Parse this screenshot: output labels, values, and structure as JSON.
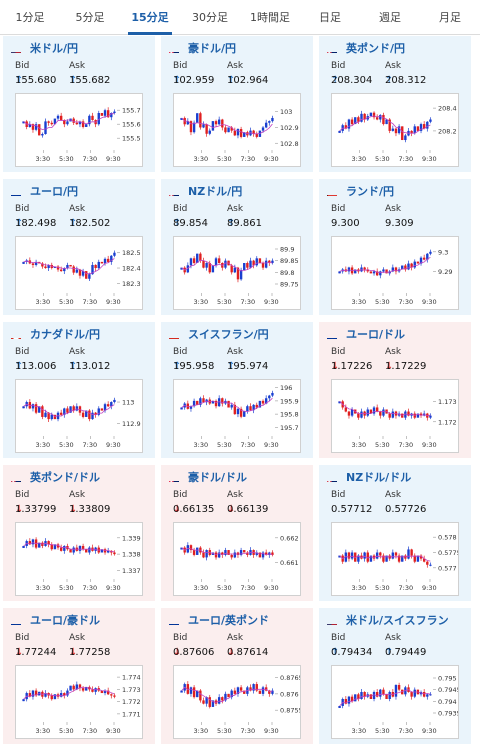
{
  "tabs": [
    "1分足",
    "5分足",
    "15分足",
    "30分足",
    "1時間足",
    "日足",
    "週足",
    "月足"
  ],
  "active_tab": 2,
  "x_ticks": [
    "3:30",
    "5:30",
    "7:30",
    "9:30"
  ],
  "colors": {
    "bull": "#1a3fd0",
    "bear": "#e02020",
    "ma": "#c040c0",
    "up_bg": "#eaf4fb",
    "down_bg": "#fbeeee"
  },
  "cards": [
    {
      "name": "米ドル/円",
      "dir": "up",
      "bid_label": "Bid",
      "ask_label": "Ask",
      "bid": "155.680",
      "ask": "155.682",
      "bid_arrow": "↑",
      "ask_arrow": "↑",
      "flags": "US-JP",
      "y_ticks": [
        "155.7",
        "155.6",
        "155.5"
      ],
      "chart_data": {
        "type": "candlestick",
        "ylim": [
          155.43,
          155.78
        ],
        "close": [
          155.62,
          155.58,
          155.6,
          155.56,
          155.6,
          155.52,
          155.53,
          155.62,
          155.61,
          155.6,
          155.64,
          155.66,
          155.63,
          155.6,
          155.62,
          155.64,
          155.61,
          155.6,
          155.62,
          155.58,
          155.6,
          155.66,
          155.63,
          155.6,
          155.68,
          155.66,
          155.7,
          155.65,
          155.68,
          155.69
        ]
      }
    },
    {
      "name": "豪ドル/円",
      "dir": "up",
      "bid_label": "Bid",
      "ask_label": "Ask",
      "bid": "102.959",
      "ask": "102.964",
      "bid_arrow": "↑",
      "ask_arrow": "↑",
      "flags": "AU-JP",
      "y_ticks": [
        "103",
        "102.9",
        "102.8"
      ],
      "chart_data": {
        "type": "candlestick",
        "ylim": [
          102.77,
          103.08
        ],
        "close": [
          102.96,
          102.92,
          102.94,
          102.87,
          102.93,
          102.99,
          102.9,
          102.92,
          102.86,
          102.88,
          102.94,
          102.92,
          102.95,
          102.9,
          102.87,
          102.9,
          102.88,
          102.85,
          102.89,
          102.84,
          102.87,
          102.85,
          102.88,
          102.86,
          102.84,
          102.88,
          102.9,
          102.93,
          102.94,
          102.96
        ]
      }
    },
    {
      "name": "英ポンド/円",
      "dir": "up",
      "bid_label": "Bid",
      "ask_label": "Ask",
      "bid": "208.304",
      "ask": "208.312",
      "bid_arrow": "↑",
      "ask_arrow": "↑",
      "flags": "GB-JP",
      "y_ticks": [
        "208.4",
        "208.2"
      ],
      "chart_data": {
        "type": "candlestick",
        "ylim": [
          208.05,
          208.48
        ],
        "close": [
          208.2,
          208.25,
          208.22,
          208.3,
          208.26,
          208.32,
          208.28,
          208.35,
          208.3,
          208.33,
          208.36,
          208.32,
          208.3,
          208.34,
          208.26,
          208.3,
          208.2,
          208.22,
          208.18,
          208.24,
          208.12,
          208.16,
          208.2,
          208.18,
          208.24,
          208.2,
          208.26,
          208.22,
          208.28,
          208.3
        ]
      }
    },
    {
      "name": "ユーロ/円",
      "dir": "up",
      "bid_label": "Bid",
      "ask_label": "Ask",
      "bid": "182.498",
      "ask": "182.502",
      "bid_arrow": "↑",
      "ask_arrow": "↑",
      "flags": "EU-JP",
      "y_ticks": [
        "182.5",
        "182.4",
        "182.3"
      ],
      "chart_data": {
        "type": "candlestick",
        "ylim": [
          182.25,
          182.57
        ],
        "close": [
          182.44,
          182.45,
          182.43,
          182.42,
          182.44,
          182.43,
          182.41,
          182.4,
          182.42,
          182.4,
          182.41,
          182.39,
          182.38,
          182.4,
          182.42,
          182.41,
          182.37,
          182.39,
          182.35,
          182.38,
          182.33,
          182.36,
          182.42,
          182.4,
          182.44,
          182.43,
          182.46,
          182.44,
          182.48,
          182.5
        ]
      }
    },
    {
      "name": "NZドル/円",
      "dir": "up",
      "bid_label": "Bid",
      "ask_label": "Ask",
      "bid": "89.854",
      "ask": "89.861",
      "bid_arrow": "↑",
      "ask_arrow": "↑",
      "flags": "NZ-JP",
      "y_ticks": [
        "89.9",
        "89.85",
        "89.8",
        "89.75"
      ],
      "chart_data": {
        "type": "candlestick",
        "ylim": [
          89.72,
          89.93
        ],
        "close": [
          89.82,
          89.8,
          89.83,
          89.86,
          89.84,
          89.88,
          89.85,
          89.82,
          89.84,
          89.8,
          89.83,
          89.86,
          89.84,
          89.82,
          89.85,
          89.83,
          89.8,
          89.82,
          89.77,
          89.81,
          89.84,
          89.82,
          89.85,
          89.83,
          89.86,
          89.84,
          89.82,
          89.85,
          89.84,
          89.85
        ]
      }
    },
    {
      "name": "ランド/円",
      "dir": "flat",
      "bid_label": "Bid",
      "ask_label": "Ask",
      "bid": "9.300",
      "ask": "9.309",
      "bid_arrow": "",
      "ask_arrow": "",
      "flags": "ZA-JP",
      "y_ticks": [
        "9.3",
        "9.29"
      ],
      "chart_data": {
        "type": "candlestick",
        "ylim": [
          9.28,
          9.305
        ],
        "close": [
          9.29,
          9.291,
          9.29,
          9.292,
          9.289,
          9.291,
          9.29,
          9.292,
          9.291,
          9.29,
          9.289,
          9.29,
          9.288,
          9.29,
          9.291,
          9.289,
          9.29,
          9.292,
          9.29,
          9.291,
          9.293,
          9.291,
          9.294,
          9.292,
          9.295,
          9.294,
          9.297,
          9.296,
          9.299,
          9.3
        ]
      }
    },
    {
      "name": "カナダドル/円",
      "dir": "up",
      "bid_label": "Bid",
      "ask_label": "Ask",
      "bid": "113.006",
      "ask": "113.012",
      "bid_arrow": "↑",
      "ask_arrow": "↑",
      "flags": "CA-JP",
      "y_ticks": [
        "113",
        "112.9"
      ],
      "chart_data": {
        "type": "candlestick",
        "ylim": [
          112.85,
          113.08
        ],
        "close": [
          112.98,
          113.0,
          112.97,
          112.99,
          112.95,
          112.98,
          112.93,
          112.95,
          112.92,
          112.94,
          112.92,
          112.95,
          112.94,
          112.97,
          112.95,
          112.98,
          112.96,
          112.98,
          112.95,
          112.93,
          112.96,
          112.92,
          112.95,
          112.94,
          112.97,
          112.96,
          112.99,
          112.98,
          113.0,
          113.01
        ]
      }
    },
    {
      "name": "スイスフラン/円",
      "dir": "up",
      "bid_label": "Bid",
      "ask_label": "Ask",
      "bid": "195.958",
      "ask": "195.974",
      "bid_arrow": "↑",
      "ask_arrow": "↑",
      "flags": "CH-JP",
      "y_ticks": [
        "196",
        "195.9",
        "195.8",
        "195.7"
      ],
      "chart_data": {
        "type": "candlestick",
        "ylim": [
          195.65,
          196.02
        ],
        "close": [
          195.85,
          195.88,
          195.84,
          195.86,
          195.9,
          195.87,
          195.92,
          195.89,
          195.91,
          195.88,
          195.9,
          195.86,
          195.92,
          195.88,
          195.9,
          195.85,
          195.87,
          195.8,
          195.84,
          195.78,
          195.82,
          195.86,
          195.83,
          195.87,
          195.85,
          195.9,
          195.88,
          195.92,
          195.94,
          195.96
        ]
      }
    },
    {
      "name": "ユーロ/ドル",
      "dir": "down",
      "bid_label": "Bid",
      "ask_label": "Ask",
      "bid": "1.17226",
      "ask": "1.17229",
      "bid_arrow": "↓",
      "ask_arrow": "↓",
      "flags": "EU-US",
      "y_ticks": [
        "1.173",
        "1.172"
      ],
      "chart_data": {
        "type": "candlestick",
        "ylim": [
          1.1714,
          1.1738
        ],
        "close": [
          1.173,
          1.1727,
          1.1725,
          1.1723,
          1.1726,
          1.1724,
          1.1722,
          1.1725,
          1.1723,
          1.1726,
          1.1724,
          1.1727,
          1.1725,
          1.1723,
          1.1726,
          1.1724,
          1.1722,
          1.1725,
          1.1723,
          1.1724,
          1.1722,
          1.1725,
          1.1723,
          1.1724,
          1.1722,
          1.1724,
          1.1723,
          1.1724,
          1.1722,
          1.1723
        ]
      }
    },
    {
      "name": "英ポンド/ドル",
      "dir": "down",
      "bid_label": "Bid",
      "ask_label": "Ask",
      "bid": "1.33799",
      "ask": "1.33809",
      "bid_arrow": "↓",
      "ask_arrow": "↓",
      "flags": "GB-US",
      "y_ticks": [
        "1.339",
        "1.338",
        "1.337"
      ],
      "chart_data": {
        "type": "candlestick",
        "ylim": [
          1.3366,
          1.3396
        ],
        "close": [
          1.3385,
          1.3388,
          1.3386,
          1.3389,
          1.3384,
          1.3387,
          1.3385,
          1.3388,
          1.3386,
          1.3383,
          1.3386,
          1.3384,
          1.3382,
          1.3385,
          1.3383,
          1.3381,
          1.3384,
          1.3382,
          1.3385,
          1.3383,
          1.3381,
          1.3384,
          1.3382,
          1.3384,
          1.3381,
          1.3383,
          1.3381,
          1.3382,
          1.3381,
          1.338
        ]
      }
    },
    {
      "name": "豪ドル/ドル",
      "dir": "down",
      "bid_label": "Bid",
      "ask_label": "Ask",
      "bid": "0.66135",
      "ask": "0.66139",
      "bid_arrow": "↓",
      "ask_arrow": "↓",
      "flags": "AU-US",
      "y_ticks": [
        "0.662",
        "0.661"
      ],
      "chart_data": {
        "type": "candlestick",
        "ylim": [
          0.6604,
          0.6624
        ],
        "close": [
          0.6616,
          0.6614,
          0.6617,
          0.6615,
          0.6613,
          0.6616,
          0.6614,
          0.6612,
          0.6615,
          0.6613,
          0.6614,
          0.6612,
          0.6614,
          0.6613,
          0.6615,
          0.6613,
          0.6612,
          0.6614,
          0.6613,
          0.6615,
          0.6614,
          0.6613,
          0.6615,
          0.6613,
          0.6614,
          0.6612,
          0.6614,
          0.6613,
          0.6614,
          0.6613
        ]
      }
    },
    {
      "name": "NZドル/ドル",
      "dir": "flat",
      "bid_label": "Bid",
      "ask_label": "Ask",
      "bid": "0.57712",
      "ask": "0.57726",
      "bid_arrow": "",
      "ask_arrow": "",
      "flags": "NZ-US",
      "y_ticks": [
        "0.578",
        "0.5775",
        "0.577"
      ],
      "chart_data": {
        "type": "candlestick",
        "ylim": [
          0.5767,
          0.5783
        ],
        "close": [
          0.5774,
          0.5772,
          0.5775,
          0.5773,
          0.5775,
          0.5772,
          0.5774,
          0.5773,
          0.5775,
          0.5772,
          0.5774,
          0.5773,
          0.5775,
          0.5774,
          0.5772,
          0.5774,
          0.5773,
          0.5775,
          0.5774,
          0.5772,
          0.5774,
          0.5773,
          0.5776,
          0.5774,
          0.5772,
          0.5774,
          0.5773,
          0.5772,
          0.5771,
          0.5771
        ]
      }
    },
    {
      "name": "ユーロ/豪ドル",
      "dir": "down",
      "bid_label": "Bid",
      "ask_label": "Ask",
      "bid": "1.77244",
      "ask": "1.77258",
      "bid_arrow": "↓",
      "ask_arrow": "↓",
      "flags": "EU-AU",
      "y_ticks": [
        "1.774",
        "1.773",
        "1.772",
        "1.771"
      ],
      "chart_data": {
        "type": "candlestick",
        "ylim": [
          1.7705,
          1.7745
        ],
        "close": [
          1.7722,
          1.7727,
          1.7724,
          1.7729,
          1.7725,
          1.7728,
          1.7724,
          1.7727,
          1.7725,
          1.7722,
          1.7726,
          1.7724,
          1.7727,
          1.7725,
          1.7729,
          1.7733,
          1.773,
          1.7734,
          1.7731,
          1.7729,
          1.7732,
          1.773,
          1.7728,
          1.7731,
          1.7729,
          1.7727,
          1.7729,
          1.7726,
          1.7725,
          1.7724
        ]
      }
    },
    {
      "name": "ユーロ/英ポンド",
      "dir": "down",
      "bid_label": "Bid",
      "ask_label": "Ask",
      "bid": "0.87606",
      "ask": "0.87614",
      "bid_arrow": "↓",
      "ask_arrow": "↓",
      "flags": "EU-GB",
      "y_ticks": [
        "0.8765",
        "0.876",
        "0.8755"
      ],
      "chart_data": {
        "type": "candlestick",
        "ylim": [
          0.8752,
          0.8767
        ],
        "close": [
          0.8761,
          0.8763,
          0.876,
          0.8762,
          0.8759,
          0.8761,
          0.8758,
          0.8757,
          0.8759,
          0.8756,
          0.8758,
          0.8757,
          0.8759,
          0.8758,
          0.876,
          0.8759,
          0.8761,
          0.876,
          0.8762,
          0.8761,
          0.876,
          0.8762,
          0.8761,
          0.8763,
          0.8761,
          0.876,
          0.8762,
          0.8761,
          0.876,
          0.8761
        ]
      }
    },
    {
      "name": "米ドル/スイスフラン",
      "dir": "up",
      "bid_label": "Bid",
      "ask_label": "Ask",
      "bid": "0.79434",
      "ask": "0.79449",
      "bid_arrow": "↑",
      "ask_arrow": "↑",
      "flags": "US-CH",
      "y_ticks": [
        "0.795",
        "0.7945",
        "0.794",
        "0.7935"
      ],
      "chart_data": {
        "type": "candlestick",
        "ylim": [
          0.7932,
          0.7953
        ],
        "close": [
          0.7938,
          0.7941,
          0.7939,
          0.7942,
          0.794,
          0.7943,
          0.7941,
          0.7944,
          0.7942,
          0.7943,
          0.7941,
          0.7944,
          0.7942,
          0.7945,
          0.7943,
          0.7941,
          0.7944,
          0.7942,
          0.7947,
          0.7945,
          0.7943,
          0.7946,
          0.7944,
          0.7942,
          0.7945,
          0.7943,
          0.7944,
          0.7942,
          0.7943,
          0.7943
        ]
      }
    }
  ]
}
